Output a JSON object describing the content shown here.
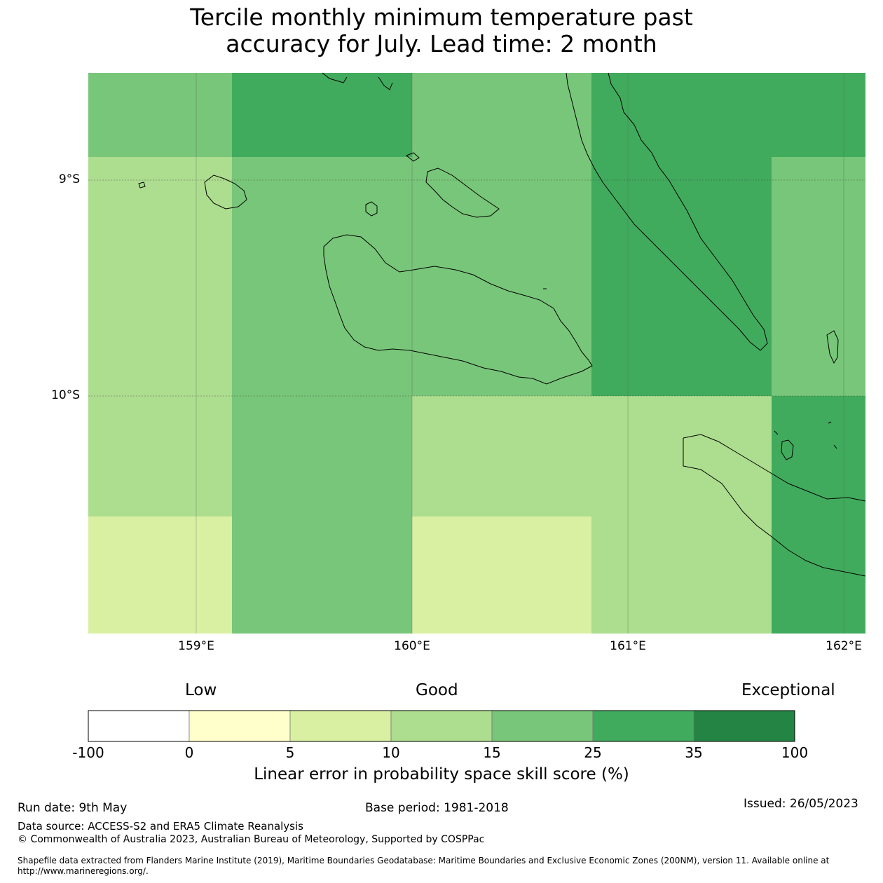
{
  "title": {
    "line1": "Tercile monthly minimum temperature past",
    "line2": "accuracy for July. Lead time: 2 month"
  },
  "map": {
    "lat_labels": [
      "9°S",
      "10°S"
    ],
    "lon_labels": [
      "159°E",
      "160°E",
      "161°E",
      "162°E"
    ],
    "grid_cells": [
      {
        "row": 0,
        "col": 0,
        "color": "#78c679"
      },
      {
        "row": 0,
        "col": 1,
        "color": "#41ab5d"
      },
      {
        "row": 0,
        "col": 2,
        "color": "#78c679"
      },
      {
        "row": 0,
        "col": 3,
        "color": "#41ab5d"
      },
      {
        "row": 1,
        "col": 0,
        "color": "#addd8e"
      },
      {
        "row": 1,
        "col": 1,
        "color": "#78c679"
      },
      {
        "row": 1,
        "col": 2,
        "color": "#78c679"
      },
      {
        "row": 1,
        "col": 3,
        "color": "#41ab5d"
      },
      {
        "row": 1,
        "col": 4,
        "color": "#78c679"
      },
      {
        "row": 2,
        "col": 0,
        "color": "#addd8e"
      },
      {
        "row": 2,
        "col": 1,
        "color": "#78c679"
      },
      {
        "row": 2,
        "col": 2,
        "color": "#addd8e"
      },
      {
        "row": 2,
        "col": 3,
        "color": "#addd8e"
      },
      {
        "row": 2,
        "col": 4,
        "color": "#41ab5d"
      },
      {
        "row": 3,
        "col": 0,
        "color": "#d9f0a3"
      },
      {
        "row": 3,
        "col": 1,
        "color": "#78c679"
      },
      {
        "row": 3,
        "col": 2,
        "color": "#d9f0a3"
      },
      {
        "row": 3,
        "col": 3,
        "color": "#addd8e"
      },
      {
        "row": 3,
        "col": 4,
        "color": "#41ab5d"
      }
    ]
  },
  "colorbar": {
    "categories": [
      "Low",
      "Good",
      "Exceptional"
    ],
    "colors": [
      "#ffffff",
      "#ffffcc",
      "#d9f0a3",
      "#addd8e",
      "#78c679",
      "#41ab5d",
      "#238443"
    ],
    "ticks": [
      "-100",
      "0",
      "5",
      "10",
      "15",
      "25",
      "35",
      "100"
    ],
    "caption": "Linear error in probability space skill score (%)"
  },
  "footer": {
    "run_date": "Run date: 9th May",
    "base_period": "Base period: 1981-2018",
    "issued": "Issued: 26/05/2023",
    "data_source": "Data source: ACCESS-S2 and ERA5 Climate Reanalysis",
    "copyright": "© Commonwealth of Australia 2023, Australian Bureau of Meteorology, Supported by COSPPac",
    "shapefile_line1": "Shapefile data extracted from Flanders Marine Institute (2019), Maritime Boundaries Geodatabase: Maritime Boundaries and Exclusive Economic Zones (200NM), version 11. Available online at",
    "shapefile_line2": "http://www.marineregions.org/."
  }
}
